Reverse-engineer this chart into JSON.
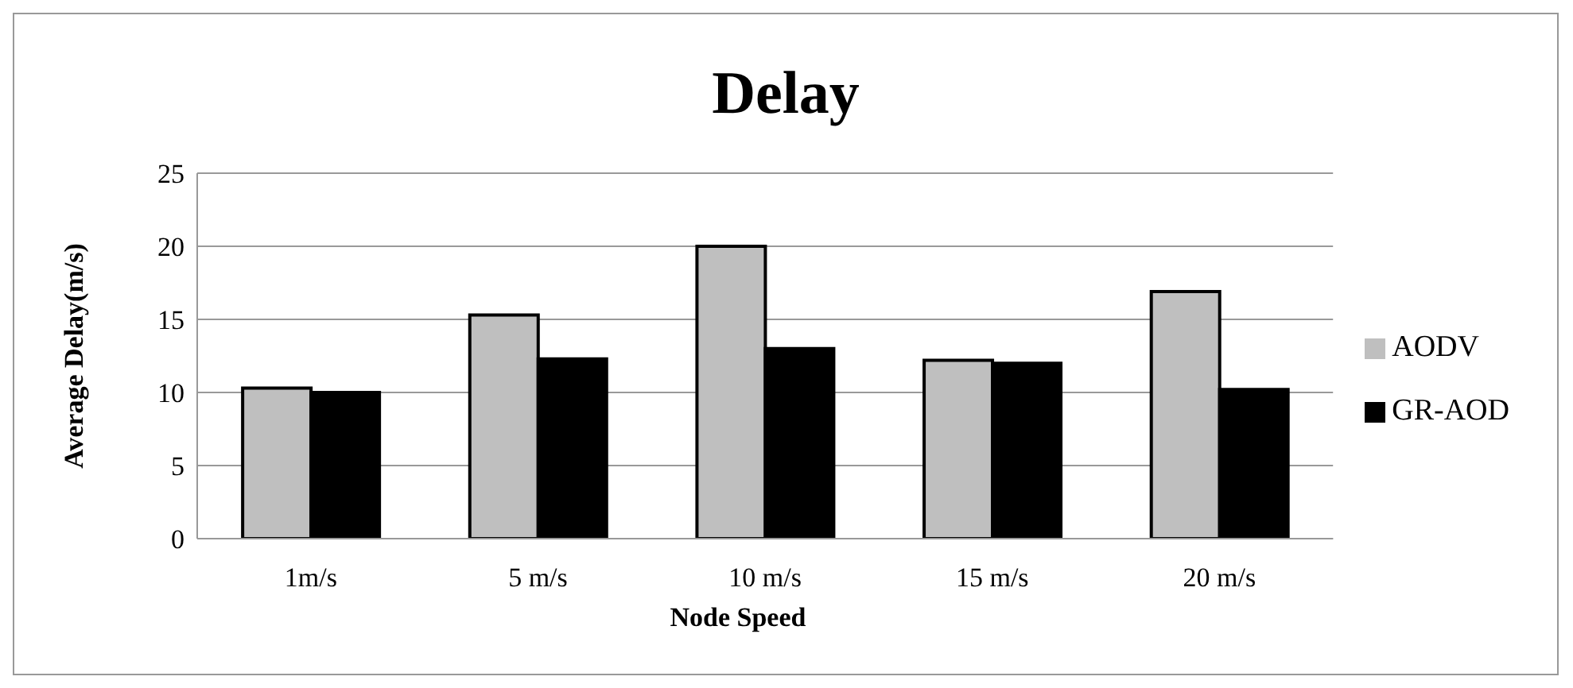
{
  "chart_data": {
    "type": "bar",
    "title": "Delay",
    "xlabel": "Node Speed",
    "ylabel": "Average Delay(m/s)",
    "categories": [
      "1m/s",
      "5 m/s",
      "10 m/s",
      "15 m/s",
      "20 m/s"
    ],
    "series": [
      {
        "name": "AODV",
        "color": "#bfbfbf",
        "values": [
          10.3,
          15.3,
          20,
          12.2,
          16.9
        ]
      },
      {
        "name": "GR-AOD",
        "color": "#000000",
        "values": [
          10,
          12.3,
          13,
          12,
          10.2
        ]
      }
    ],
    "ylim": [
      0,
      25
    ],
    "yticks": [
      0,
      5,
      10,
      15,
      20,
      25
    ],
    "grid": "y",
    "legend": "right"
  }
}
